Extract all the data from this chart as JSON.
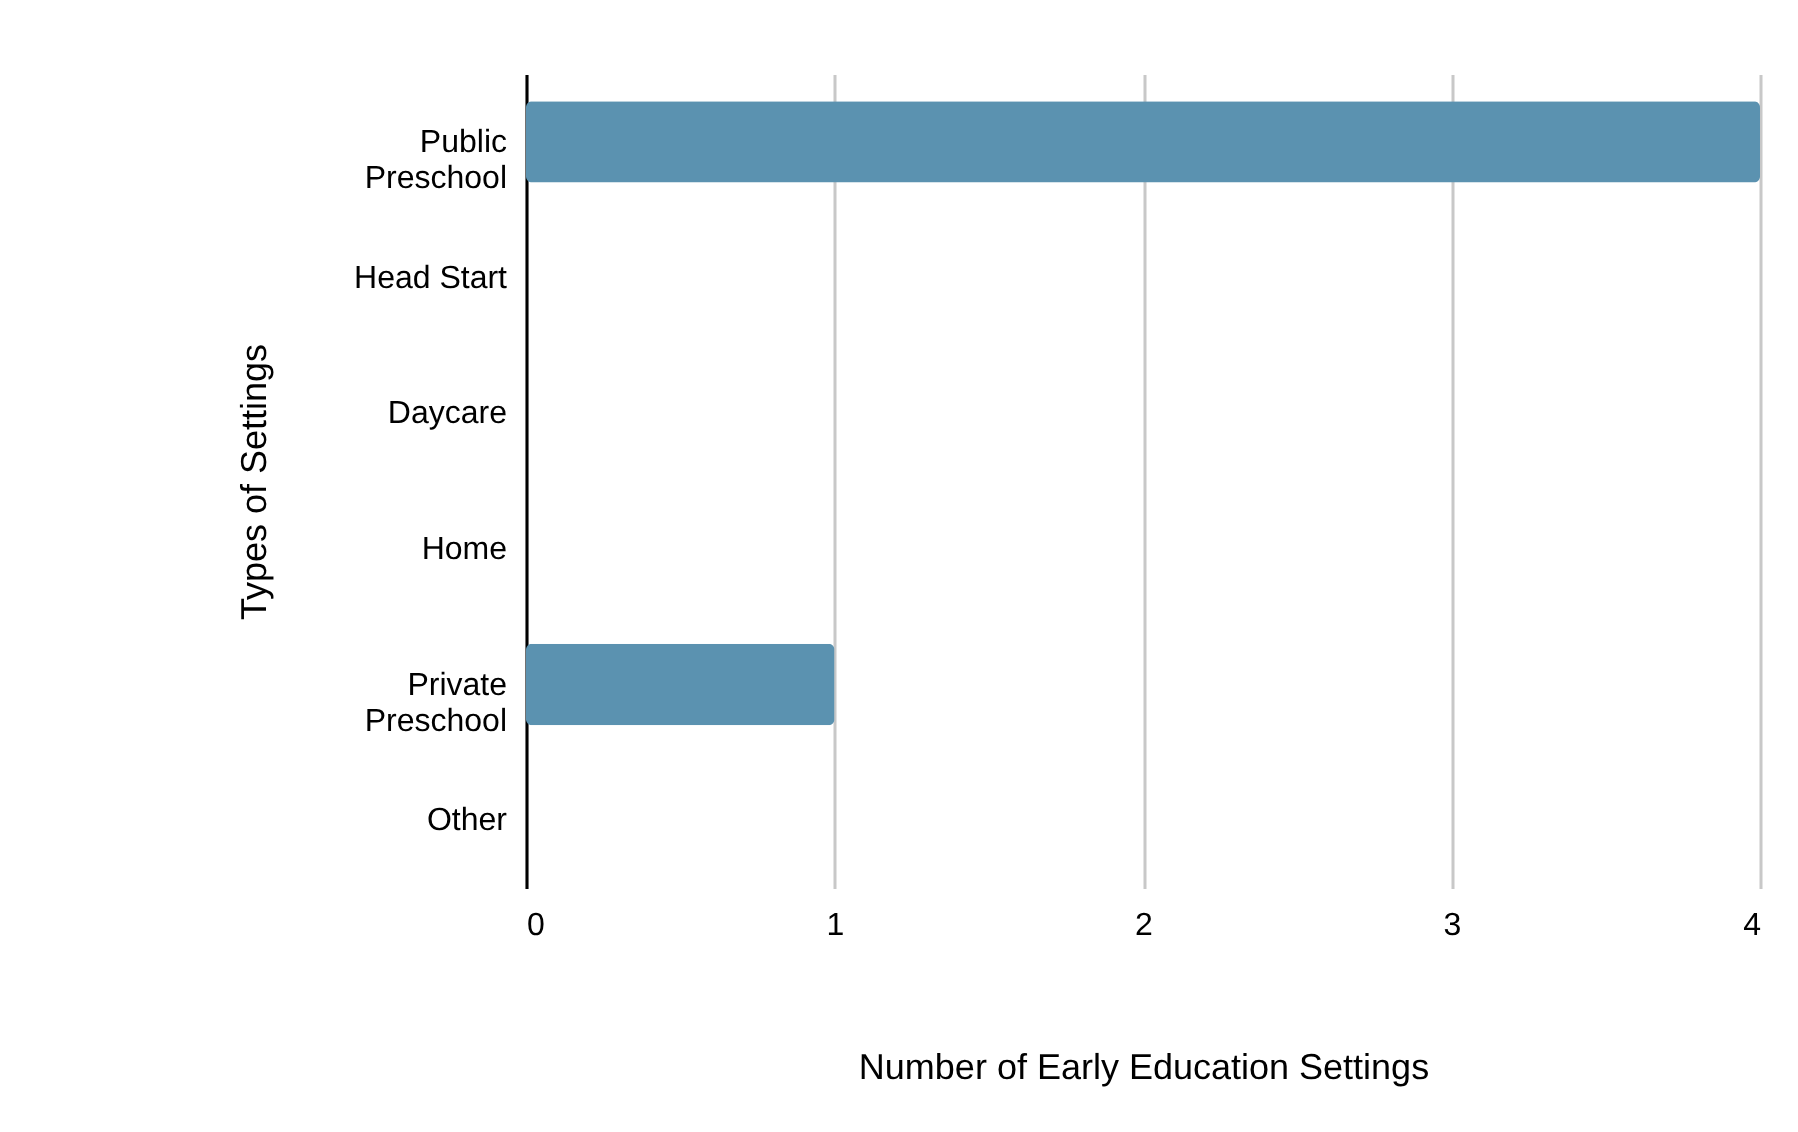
{
  "chart_data": {
    "type": "bar",
    "orientation": "horizontal",
    "xlabel": "Number of Early Education Settings",
    "ylabel": "Types of Settings",
    "categories": [
      "Public Preschool",
      "Head Start",
      "Daycare",
      "Home",
      "Private Preschool",
      "Other"
    ],
    "values": [
      4,
      0,
      0,
      0,
      1,
      0
    ],
    "color": "#5b92b0",
    "xlim": [
      0,
      4
    ],
    "xticks": [
      0,
      1,
      2,
      3,
      4
    ],
    "grid": "x"
  }
}
